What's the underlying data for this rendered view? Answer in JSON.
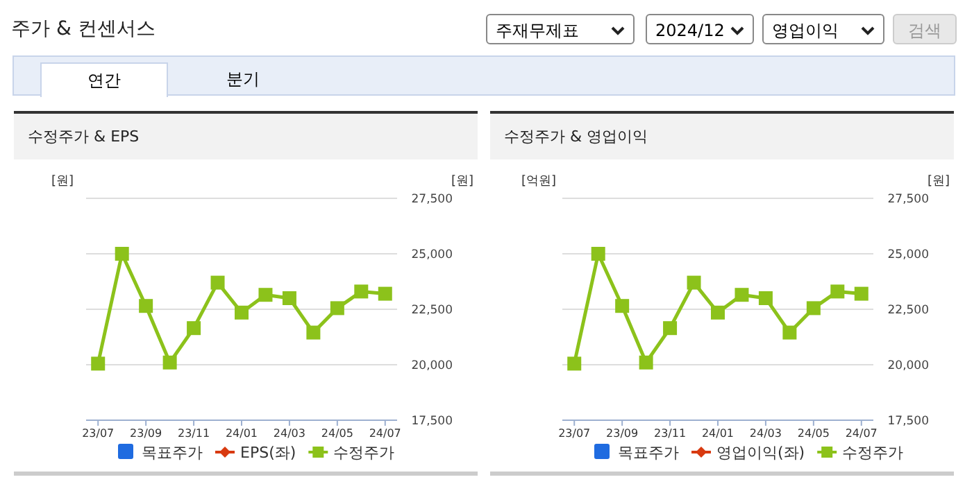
{
  "chart_data": [
    {
      "type": "line",
      "title": "수정주가 & EPS",
      "annotations": [
        "주가 & 컨센서스",
        "주재무제표",
        "2024/12",
        "영업이익",
        "검색",
        "연간",
        "분기"
      ],
      "ylabel": "[원]",
      "y2label": "[원]",
      "categories": [
        "23/07",
        null,
        "23/09",
        null,
        "23/11",
        null,
        "24/01",
        null,
        "24/03",
        null,
        "24/05",
        null,
        "24/07"
      ],
      "series": [
        {
          "name": "목표주가",
          "type": "bar",
          "color": "#1f6be0",
          "values": [
            null,
            null,
            null,
            null,
            null,
            null,
            null,
            null,
            null,
            null,
            null,
            null,
            null
          ]
        },
        {
          "name": "EPS(좌)",
          "color": "#d83a10",
          "marker": "diamond",
          "values": [
            null,
            null,
            null,
            null,
            null,
            null,
            null,
            null,
            null,
            null,
            null,
            null,
            null
          ]
        },
        {
          "name": "수정주가",
          "color": "#8cc21b",
          "axis": "y2",
          "values": [
            20050,
            25000,
            22650,
            20100,
            21650,
            23700,
            22350,
            23150,
            23000,
            21450,
            22550,
            23300,
            23200
          ]
        }
      ],
      "y2lim": [
        17500,
        27500
      ],
      "y2ticks": [
        {
          "value": 17500,
          "label": "17,500"
        },
        {
          "value": 20000,
          "label": "20,000"
        },
        {
          "value": 22500,
          "label": "22,500"
        },
        {
          "value": 25000,
          "label": "25,000"
        },
        {
          "value": 27500,
          "label": "27,500"
        }
      ],
      "grid": "y",
      "legend": "bottom",
      "marker": "square"
    },
    {
      "type": "line",
      "title": "수정주가 & 영업이익",
      "ylabel": "[억원]",
      "y2label": "[원]",
      "categories": [
        "23/07",
        null,
        "23/09",
        null,
        "23/11",
        null,
        "24/01",
        null,
        "24/03",
        null,
        "24/05",
        null,
        "24/07"
      ],
      "series": [
        {
          "name": "목표주가",
          "type": "bar",
          "color": "#1f6be0",
          "values": [
            null,
            null,
            null,
            null,
            null,
            null,
            null,
            null,
            null,
            null,
            null,
            null,
            null
          ]
        },
        {
          "name": "영업이익(좌)",
          "color": "#d83a10",
          "marker": "diamond",
          "values": [
            null,
            null,
            null,
            null,
            null,
            null,
            null,
            null,
            null,
            null,
            null,
            null,
            null
          ]
        },
        {
          "name": "수정주가",
          "color": "#8cc21b",
          "axis": "y2",
          "values": [
            20050,
            25000,
            22650,
            20100,
            21650,
            23700,
            22350,
            23150,
            23000,
            21450,
            22550,
            23300,
            23200
          ]
        }
      ],
      "y2lim": [
        17500,
        27500
      ],
      "y2ticks": [
        {
          "value": 17500,
          "label": "17,500"
        },
        {
          "value": 20000,
          "label": "20,000"
        },
        {
          "value": 22500,
          "label": "22,500"
        },
        {
          "value": 25000,
          "label": "25,000"
        },
        {
          "value": 27500,
          "label": "27,500"
        }
      ],
      "grid": "y",
      "legend": "bottom",
      "marker": "square"
    }
  ]
}
